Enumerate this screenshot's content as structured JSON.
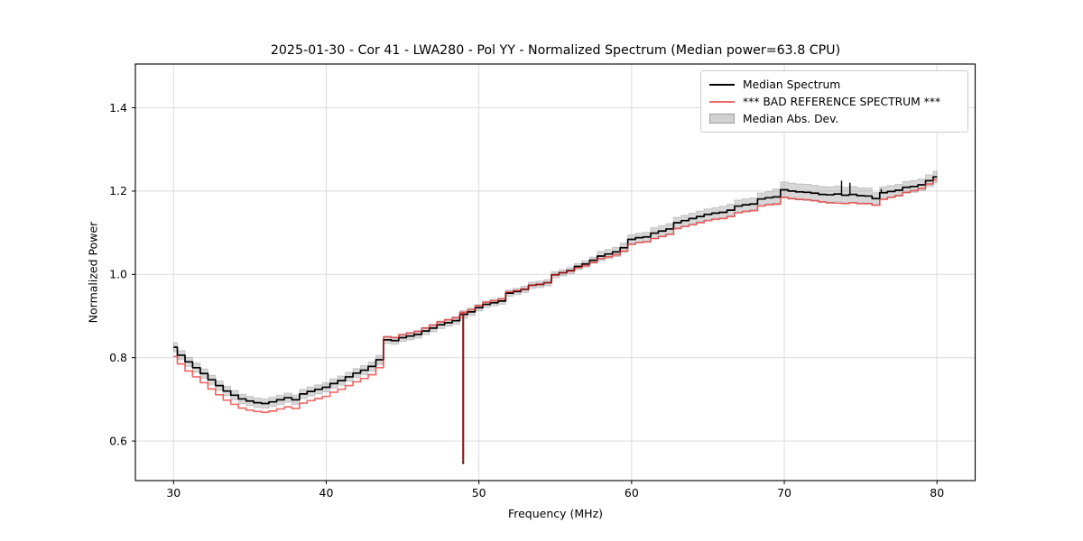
{
  "figure": {
    "title": "2025-01-30 - Cor 41 - LWA280 - Pol YY - Normalized Spectrum (Median power=63.8 CPU)",
    "xlabel": "Frequency (MHz)",
    "ylabel": "Normalized Power"
  },
  "legend": {
    "position": "upper right",
    "items": [
      {
        "label": "Median Spectrum",
        "marker": "line",
        "color": "#000000"
      },
      {
        "label": "*** BAD REFERENCE SPECTRUM ***",
        "marker": "line",
        "color": "#ee6a6a"
      },
      {
        "label": "Median Abs. Dev.",
        "marker": "patch",
        "color": "#d2d2d2"
      }
    ]
  },
  "colors": {
    "median_line": "#000000",
    "reference_line": "rgba(232,30,30,0.66)",
    "reference_swatch": "#ee6a6a",
    "band_fill": "rgba(150,150,150,0.38)",
    "band_edge": "rgba(130,130,130,0.35)",
    "grid": "#dcdcdc",
    "spine": "#000000"
  },
  "chart_data": {
    "type": "line",
    "title": "2025-01-30 - Cor 41 - LWA280 - Pol YY - Normalized Spectrum (Median power=63.8 CPU)",
    "xlabel": "Frequency (MHz)",
    "ylabel": "Normalized Power",
    "xlim": [
      27.5,
      82.5
    ],
    "ylim": [
      0.505,
      1.505
    ],
    "xticks": [
      30,
      40,
      50,
      60,
      70,
      80
    ],
    "yticks": [
      0.6,
      0.8,
      1.0,
      1.2,
      1.4
    ],
    "grid": true,
    "legend_position": "upper right",
    "x": [
      30.0,
      30.5,
      31.0,
      31.5,
      32.0,
      32.5,
      33.0,
      33.5,
      34.0,
      34.5,
      35.0,
      35.5,
      36.0,
      36.5,
      37.0,
      37.5,
      38.0,
      38.5,
      39.0,
      39.5,
      40.0,
      40.5,
      41.0,
      41.5,
      42.0,
      42.5,
      43.0,
      43.5,
      44.0,
      44.5,
      45.0,
      45.5,
      46.0,
      46.5,
      47.0,
      47.5,
      48.0,
      48.5,
      49.0,
      49.5,
      50.0,
      50.5,
      51.0,
      51.5,
      52.0,
      52.5,
      53.0,
      53.5,
      54.0,
      54.5,
      55.0,
      55.5,
      56.0,
      56.5,
      57.0,
      57.5,
      58.0,
      58.5,
      59.0,
      59.5,
      60.0,
      60.5,
      61.0,
      61.5,
      62.0,
      62.5,
      63.0,
      63.5,
      64.0,
      64.5,
      65.0,
      65.5,
      66.0,
      66.5,
      67.0,
      67.5,
      68.0,
      68.5,
      69.0,
      69.5,
      70.0,
      70.5,
      71.0,
      71.5,
      72.0,
      72.5,
      73.0,
      73.5,
      74.0,
      74.5,
      75.0,
      75.5,
      76.0,
      76.5,
      77.0,
      77.5,
      78.0,
      78.5,
      79.0,
      79.5,
      80.0
    ],
    "series": [
      {
        "name": "Median Spectrum",
        "color": "#000000",
        "values": [
          0.825,
          0.806,
          0.79,
          0.776,
          0.762,
          0.747,
          0.733,
          0.72,
          0.71,
          0.701,
          0.696,
          0.692,
          0.69,
          0.694,
          0.699,
          0.704,
          0.699,
          0.713,
          0.719,
          0.724,
          0.729,
          0.738,
          0.745,
          0.754,
          0.763,
          0.77,
          0.779,
          0.795,
          0.843,
          0.841,
          0.848,
          0.852,
          0.856,
          0.864,
          0.871,
          0.879,
          0.884,
          0.889,
          0.904,
          0.91,
          0.92,
          0.928,
          0.932,
          0.936,
          0.955,
          0.959,
          0.964,
          0.974,
          0.976,
          0.98,
          0.999,
          1.004,
          1.009,
          1.019,
          1.025,
          1.034,
          1.044,
          1.049,
          1.054,
          1.064,
          1.084,
          1.088,
          1.09,
          1.099,
          1.104,
          1.109,
          1.124,
          1.129,
          1.134,
          1.139,
          1.144,
          1.147,
          1.149,
          1.154,
          1.164,
          1.167,
          1.169,
          1.181,
          1.184,
          1.186,
          1.203,
          1.2,
          1.198,
          1.197,
          1.195,
          1.192,
          1.191,
          1.193,
          1.19,
          1.192,
          1.189,
          1.188,
          1.182,
          1.196,
          1.199,
          1.202,
          1.209,
          1.211,
          1.215,
          1.225,
          1.234
        ]
      },
      {
        "name": "*** BAD REFERENCE SPECTRUM ***",
        "color": "rgba(232,30,30,0.66)",
        "values": [
          0.803,
          0.785,
          0.768,
          0.754,
          0.74,
          0.725,
          0.711,
          0.698,
          0.688,
          0.679,
          0.674,
          0.671,
          0.669,
          0.672,
          0.677,
          0.682,
          0.678,
          0.691,
          0.697,
          0.702,
          0.707,
          0.717,
          0.724,
          0.733,
          0.742,
          0.75,
          0.759,
          0.776,
          0.85,
          0.848,
          0.855,
          0.859,
          0.863,
          0.871,
          0.878,
          0.886,
          0.891,
          0.896,
          0.909,
          0.915,
          0.925,
          0.933,
          0.937,
          0.941,
          0.958,
          0.961,
          0.965,
          0.974,
          0.976,
          0.98,
          0.999,
          1.004,
          1.008,
          1.016,
          1.021,
          1.029,
          1.038,
          1.042,
          1.047,
          1.056,
          1.072,
          1.076,
          1.078,
          1.086,
          1.091,
          1.096,
          1.11,
          1.115,
          1.119,
          1.124,
          1.129,
          1.132,
          1.134,
          1.139,
          1.148,
          1.151,
          1.153,
          1.164,
          1.167,
          1.169,
          1.185,
          1.182,
          1.18,
          1.179,
          1.177,
          1.174,
          1.172,
          1.171,
          1.17,
          1.172,
          1.17,
          1.17,
          1.166,
          1.18,
          1.185,
          1.189,
          1.197,
          1.201,
          1.206,
          1.217,
          1.227
        ]
      },
      {
        "name": "Median Abs. Dev.",
        "type": "band",
        "around": "Median Spectrum",
        "color": "rgba(150,150,150,0.38)",
        "half_width": [
          0.011,
          0.011,
          0.011,
          0.011,
          0.011,
          0.011,
          0.011,
          0.011,
          0.011,
          0.011,
          0.011,
          0.011,
          0.011,
          0.011,
          0.011,
          0.011,
          0.011,
          0.011,
          0.011,
          0.011,
          0.011,
          0.011,
          0.011,
          0.011,
          0.011,
          0.011,
          0.011,
          0.011,
          0.009,
          0.009,
          0.009,
          0.009,
          0.009,
          0.009,
          0.009,
          0.009,
          0.009,
          0.009,
          0.009,
          0.009,
          0.0075,
          0.0075,
          0.0075,
          0.0075,
          0.0075,
          0.0075,
          0.0075,
          0.0075,
          0.0075,
          0.0075,
          0.0075,
          0.0075,
          0.0075,
          0.0075,
          0.0075,
          0.0075,
          0.011,
          0.011,
          0.011,
          0.011,
          0.011,
          0.011,
          0.011,
          0.013,
          0.013,
          0.013,
          0.013,
          0.013,
          0.013,
          0.013,
          0.013,
          0.013,
          0.0145,
          0.0145,
          0.0145,
          0.0145,
          0.0145,
          0.0145,
          0.0145,
          0.019,
          0.019,
          0.019,
          0.019,
          0.019,
          0.019,
          0.019,
          0.019,
          0.019,
          0.019,
          0.019,
          0.019,
          0.019,
          0.014,
          0.014,
          0.014,
          0.014,
          0.014,
          0.014,
          0.014,
          0.014,
          0.014
        ]
      }
    ],
    "spike": {
      "freq": 48.97,
      "bottom": 0.545
    },
    "minor_spikes": [
      {
        "freq": 73.75,
        "top": 1.225
      },
      {
        "freq": 74.3,
        "top": 1.22
      },
      {
        "freq": 76.35,
        "top": 1.205
      }
    ]
  }
}
